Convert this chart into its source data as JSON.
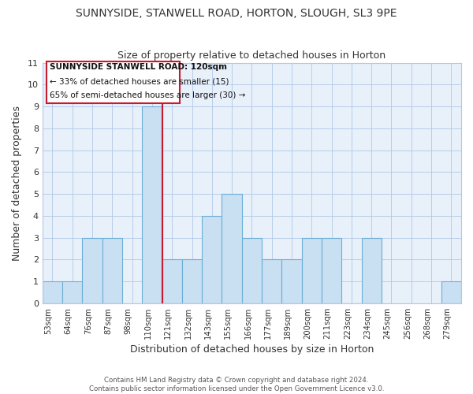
{
  "title": "SUNNYSIDE, STANWELL ROAD, HORTON, SLOUGH, SL3 9PE",
  "subtitle": "Size of property relative to detached houses in Horton",
  "xlabel": "Distribution of detached houses by size in Horton",
  "ylabel": "Number of detached properties",
  "bar_labels": [
    "53sqm",
    "64sqm",
    "76sqm",
    "87sqm",
    "98sqm",
    "110sqm",
    "121sqm",
    "132sqm",
    "143sqm",
    "155sqm",
    "166sqm",
    "177sqm",
    "189sqm",
    "200sqm",
    "211sqm",
    "223sqm",
    "234sqm",
    "245sqm",
    "256sqm",
    "268sqm",
    "279sqm"
  ],
  "bar_values": [
    1,
    1,
    3,
    3,
    0,
    9,
    2,
    2,
    4,
    5,
    3,
    2,
    2,
    3,
    3,
    0,
    3,
    0,
    0,
    0,
    1
  ],
  "highlight_index": 5,
  "highlight_right_edge": true,
  "bar_color": "#c9dff2",
  "bar_edge_color": "#6baed6",
  "highlight_color": "#c8192d",
  "annotation_title": "SUNNYSIDE STANWELL ROAD: 120sqm",
  "annotation_line1": "← 33% of detached houses are smaller (15)",
  "annotation_line2": "65% of semi-detached houses are larger (30) →",
  "ylim": [
    0,
    11
  ],
  "yticks": [
    0,
    1,
    2,
    3,
    4,
    5,
    6,
    7,
    8,
    9,
    10,
    11
  ],
  "footer1": "Contains HM Land Registry data © Crown copyright and database right 2024.",
  "footer2": "Contains public sector information licensed under the Open Government Licence v3.0.",
  "bg_color": "#e8f0fa"
}
